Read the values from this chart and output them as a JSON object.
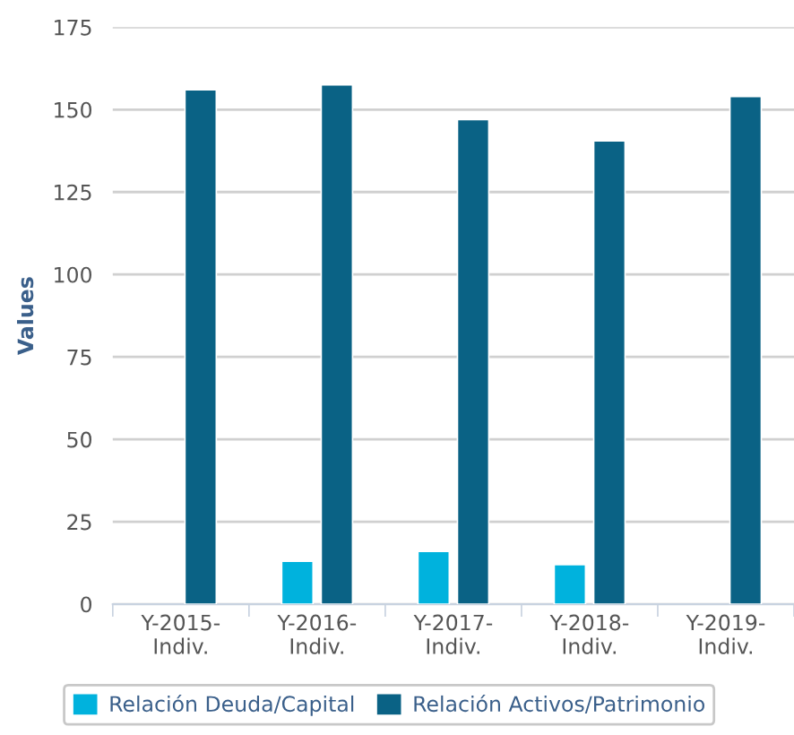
{
  "chart_data": {
    "type": "bar",
    "ylabel": "Values",
    "categories": [
      "Y-2015-Indiv.",
      "Y-2016-Indiv.",
      "Y-2017-Indiv.",
      "Y-2018-Indiv.",
      "Y-2019-Indiv."
    ],
    "series": [
      {
        "name": "Relación Deuda/Capital",
        "color": "#00b2dd",
        "values": [
          null,
          13,
          16,
          12,
          null
        ]
      },
      {
        "name": "Relación Activos/Patrimonio",
        "color": "#0a6285",
        "values": [
          156,
          157.5,
          147,
          140.5,
          154
        ]
      }
    ],
    "ylim": [
      0,
      175
    ],
    "yticks": [
      0,
      25,
      50,
      75,
      100,
      125,
      150,
      175
    ],
    "grid": "y",
    "legend": "bottom"
  }
}
